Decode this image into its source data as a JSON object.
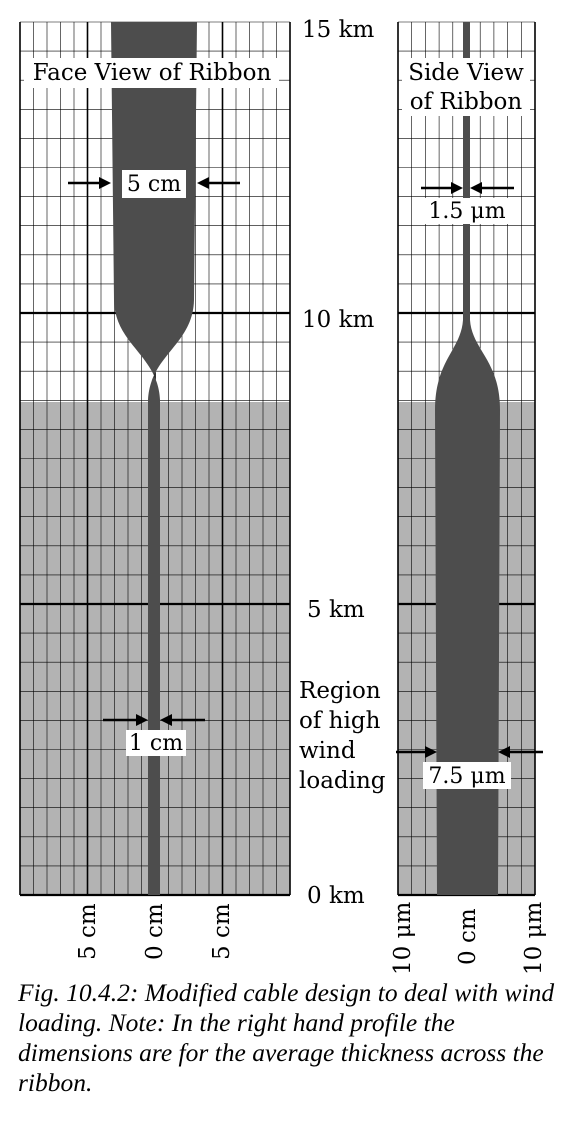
{
  "panels": {
    "face_title": "Face View of Ribbon",
    "side_title_line1": "Side View",
    "side_title_line2": "of Ribbon"
  },
  "height_labels": [
    "15 km",
    "10 km",
    "5 km",
    "0 km"
  ],
  "region_label": [
    "Region",
    "of high",
    "wind",
    "loading"
  ],
  "dimensions": {
    "face_top": "5 cm",
    "face_bottom": "1 cm",
    "side_top": "1.5 μm",
    "side_bottom": "7.5 μm"
  },
  "x_labels": {
    "face": [
      "5 cm",
      "0 cm",
      "5 cm"
    ],
    "side": [
      "10 μm",
      "0 cm",
      "10 μm"
    ]
  },
  "caption": "Fig. 10.4.2: Modified cable design to deal with wind loading. Note: In the right hand profile the dimensions are for the average thickness across the ribbon.",
  "colors": {
    "ribbon": "#4d4d4d",
    "wind_region": "#b3b3b3",
    "grid": "#000000"
  }
}
